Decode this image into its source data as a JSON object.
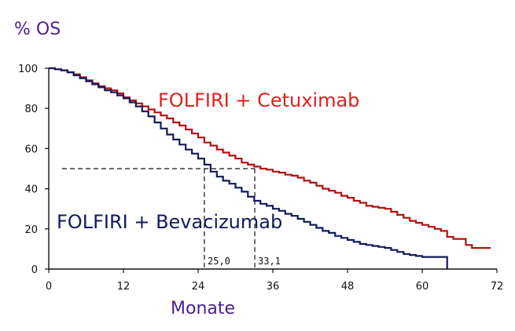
{
  "chart_data": {
    "type": "line",
    "title": "",
    "ylabel": "% OS",
    "xlabel": "Monate",
    "xlim": [
      0,
      72
    ],
    "ylim": [
      0,
      100
    ],
    "xticks": [
      0,
      12,
      24,
      36,
      48,
      60,
      72
    ],
    "yticks": [
      0,
      20,
      40,
      60,
      80,
      100
    ],
    "grid": false,
    "colors": {
      "ylabel": "#4b1f8f",
      "xlabel": "#4b1f8f",
      "axis": "#111111",
      "reference": "#111111"
    },
    "reference_line": {
      "y": 50
    },
    "series": [
      {
        "name": "FOLFIRI + Cetuximab",
        "color": "#b01212",
        "label_color": "#e01f1f",
        "median": 33.1,
        "median_label": "33,1",
        "x": [
          0,
          1,
          2,
          3,
          4,
          5,
          6,
          7,
          8,
          9,
          10,
          11,
          12,
          13,
          14,
          15,
          16,
          17,
          18,
          19,
          20,
          21,
          22,
          23,
          24,
          25,
          26,
          27,
          28,
          29,
          30,
          31,
          32,
          33,
          34,
          35,
          36,
          37,
          38,
          39,
          40,
          41,
          42,
          43,
          44,
          45,
          46,
          47,
          48,
          49,
          50,
          51,
          52,
          53,
          54,
          55,
          56,
          57,
          58,
          59,
          60,
          61,
          62,
          63,
          64,
          65,
          66,
          67,
          68,
          69,
          70,
          71
        ],
        "y": [
          100,
          99.5,
          99,
          98,
          97,
          95.5,
          94,
          92.5,
          91,
          90,
          89,
          87.5,
          85.5,
          84,
          82.5,
          81,
          79.5,
          78,
          76.5,
          75,
          73,
          71.5,
          69.5,
          67.5,
          65.5,
          63,
          61.5,
          59.5,
          58,
          56.5,
          55,
          53,
          52,
          51,
          50,
          49.5,
          48.5,
          48,
          47,
          46.5,
          45.5,
          44,
          43,
          41.5,
          40,
          39,
          38,
          36.5,
          35.5,
          34,
          33,
          31.5,
          31,
          30.5,
          30,
          28.5,
          27,
          25.5,
          24,
          23,
          22,
          21,
          20,
          19,
          16,
          15,
          15,
          12,
          10.5,
          10.5,
          10.5,
          10.5
        ]
      },
      {
        "name": "FOLFIRI + Bevacizumab",
        "color": "#131a5a",
        "label_color": "#131a5a",
        "median": 25.0,
        "median_label": "25,0",
        "x": [
          0,
          1,
          2,
          3,
          4,
          5,
          6,
          7,
          8,
          9,
          10,
          11,
          12,
          13,
          14,
          15,
          16,
          17,
          18,
          19,
          20,
          21,
          22,
          23,
          24,
          25,
          26,
          27,
          28,
          29,
          30,
          31,
          32,
          33,
          34,
          35,
          36,
          37,
          38,
          39,
          40,
          41,
          42,
          43,
          44,
          45,
          46,
          47,
          48,
          49,
          50,
          51,
          52,
          53,
          54,
          55,
          56,
          57,
          58,
          59,
          60,
          61,
          62,
          63,
          64,
          64
        ],
        "y": [
          100,
          99.5,
          99,
          98,
          96.5,
          95,
          93.5,
          92,
          90.5,
          89,
          88,
          86.5,
          85,
          83,
          81,
          78.5,
          76,
          73,
          70,
          67,
          64.5,
          62,
          59.5,
          57.5,
          55,
          52,
          48.5,
          46,
          44,
          42.5,
          40.5,
          38.5,
          36,
          34,
          32.5,
          31.5,
          30,
          29,
          27.5,
          26.5,
          25,
          23.5,
          22,
          20.5,
          19,
          18,
          16.5,
          15.5,
          14.5,
          13.5,
          12.5,
          12,
          11.5,
          11,
          10.5,
          9.5,
          8.5,
          7.5,
          7,
          6.5,
          6,
          6,
          6,
          6,
          6,
          0
        ]
      }
    ]
  }
}
